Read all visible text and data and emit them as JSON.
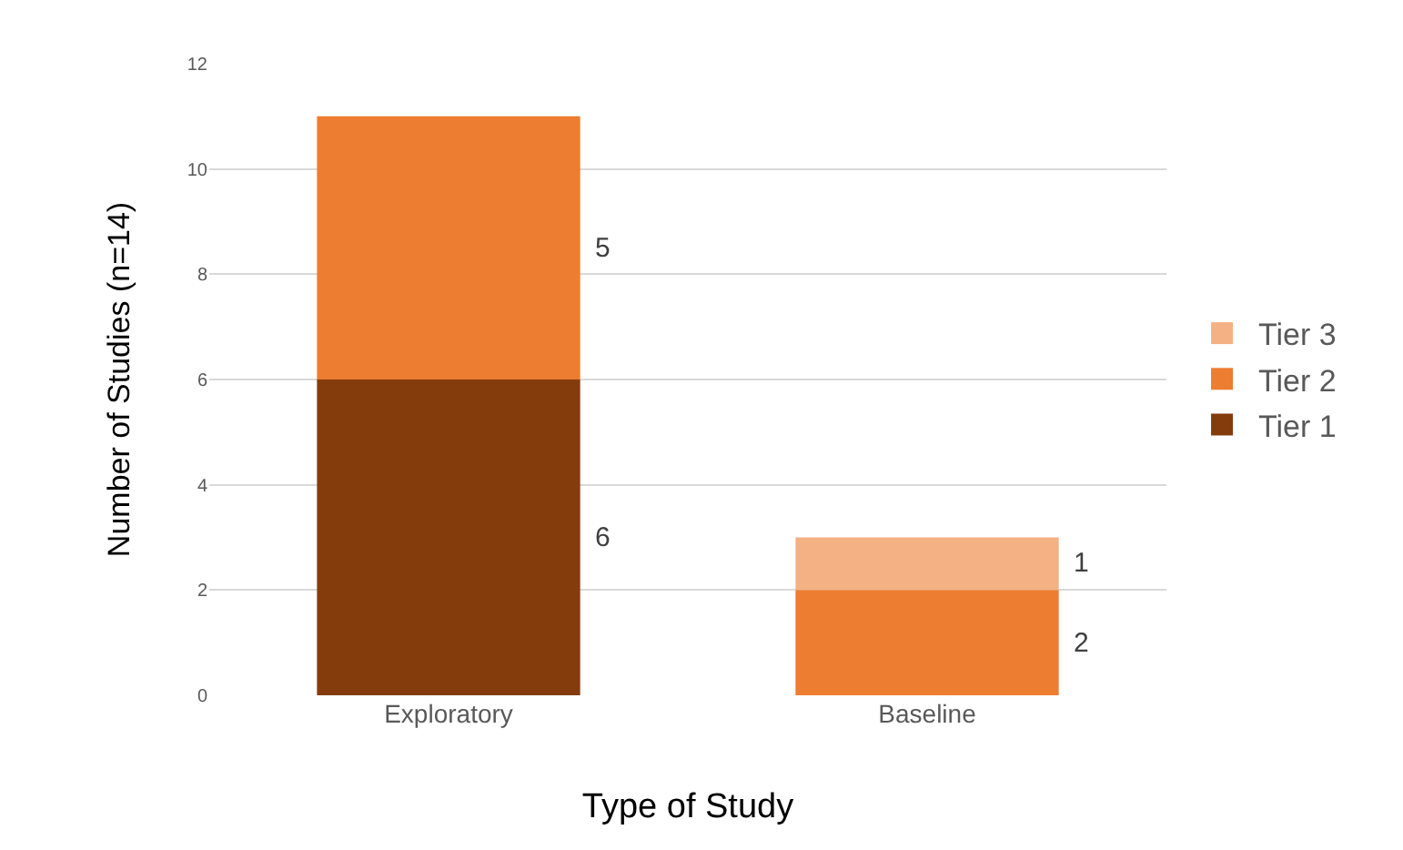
{
  "chart_data": {
    "type": "bar",
    "stacked": true,
    "xlabel": "Type of Study",
    "ylabel": "Number of Studies (n=14)",
    "categories": [
      "Exploratory",
      "Baseline"
    ],
    "series": [
      {
        "name": "Tier 1",
        "color": "#843c0c",
        "values": [
          6,
          0
        ],
        "value_labels": [
          "6",
          null
        ]
      },
      {
        "name": "Tier 2",
        "color": "#ed7d31",
        "values": [
          5,
          2
        ],
        "value_labels": [
          "5",
          "2"
        ]
      },
      {
        "name": "Tier 3",
        "color": "#f4b183",
        "values": [
          0,
          1
        ],
        "value_labels": [
          null,
          "1"
        ]
      }
    ],
    "ylim": [
      0,
      12
    ],
    "yticks": [
      0,
      2,
      4,
      6,
      8,
      10,
      12
    ],
    "grid": "y",
    "legend": "right"
  }
}
